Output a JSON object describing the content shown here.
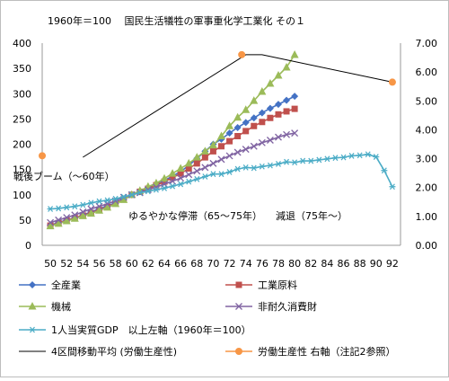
{
  "chart_data": {
    "type": "line",
    "title": "1960年＝100　 国民生活犠牲の軍事重化学工業化 その１",
    "x": [
      50,
      51,
      52,
      53,
      54,
      55,
      56,
      57,
      58,
      59,
      60,
      61,
      62,
      63,
      64,
      65,
      66,
      67,
      68,
      69,
      70,
      71,
      72,
      73,
      74,
      75,
      76,
      77,
      78,
      79,
      80,
      81,
      82,
      83,
      84,
      85,
      86,
      87,
      88,
      89,
      90,
      91,
      92
    ],
    "x_ticks": [
      "50",
      "52",
      "54",
      "56",
      "58",
      "60",
      "62",
      "64",
      "66",
      "68",
      "70",
      "72",
      "74",
      "76",
      "78",
      "80",
      "82",
      "84",
      "86",
      "88",
      "90",
      "92"
    ],
    "xlim": [
      49,
      93
    ],
    "y_left": {
      "ylim": [
        0,
        400
      ],
      "ticks": [
        "0",
        "50",
        "100",
        "150",
        "200",
        "250",
        "300",
        "350",
        "400"
      ]
    },
    "y_right": {
      "ylim": [
        0,
        7
      ],
      "ticks": [
        "0.00",
        "1.00",
        "2.00",
        "3.00",
        "4.00",
        "5.00",
        "6.00",
        "7.00"
      ]
    },
    "grid": false,
    "series": [
      {
        "name": "全産業",
        "axis": "left",
        "marker": "diamond",
        "color": "#4472c4",
        "x": [
          50,
          51,
          52,
          53,
          54,
          55,
          56,
          57,
          58,
          59,
          60,
          61,
          62,
          63,
          64,
          65,
          66,
          67,
          68,
          69,
          70,
          71,
          72,
          73,
          74,
          75,
          76,
          77,
          78,
          79,
          80
        ],
        "values": [
          40,
          45,
          50,
          54,
          60,
          66,
          72,
          78,
          84,
          92,
          100,
          106,
          114,
          120,
          128,
          137,
          146,
          158,
          172,
          186,
          200,
          210,
          222,
          233,
          243,
          252,
          262,
          271,
          279,
          287,
          295
        ]
      },
      {
        "name": "工業原料",
        "axis": "left",
        "marker": "square",
        "color": "#c0504d",
        "x": [
          50,
          51,
          52,
          53,
          54,
          55,
          56,
          57,
          58,
          59,
          60,
          61,
          62,
          63,
          64,
          65,
          66,
          67,
          68,
          69,
          70,
          71,
          72,
          73,
          74,
          75,
          76,
          77,
          78,
          79,
          80
        ],
        "values": [
          39,
          44,
          49,
          54,
          59,
          64,
          70,
          76,
          83,
          91,
          100,
          106,
          112,
          119,
          126,
          134,
          142,
          152,
          162,
          174,
          186,
          196,
          206,
          216,
          226,
          236,
          244,
          252,
          259,
          265,
          270
        ]
      },
      {
        "name": "機械",
        "axis": "left",
        "marker": "triangle",
        "color": "#9bbb59",
        "x": [
          50,
          51,
          52,
          53,
          54,
          55,
          56,
          57,
          58,
          59,
          60,
          61,
          62,
          63,
          64,
          65,
          66,
          67,
          68,
          69,
          70,
          71,
          72,
          73,
          74,
          75,
          76,
          77,
          78,
          79,
          80
        ],
        "values": [
          38,
          43,
          48,
          53,
          58,
          63,
          69,
          75,
          82,
          90,
          100,
          108,
          116,
          123,
          132,
          142,
          152,
          162,
          174,
          186,
          198,
          216,
          236,
          253,
          268,
          286,
          304,
          320,
          336,
          352,
          377
        ]
      },
      {
        "name": "非耐久消費財",
        "axis": "left",
        "marker": "x",
        "color": "#8064a2",
        "x": [
          50,
          51,
          52,
          53,
          54,
          55,
          56,
          57,
          58,
          59,
          60,
          61,
          62,
          63,
          64,
          65,
          66,
          67,
          68,
          69,
          70,
          71,
          72,
          73,
          74,
          75,
          76,
          77,
          78,
          79,
          80
        ],
        "values": [
          45,
          50,
          55,
          60,
          66,
          72,
          77,
          82,
          88,
          95,
          100,
          104,
          110,
          115,
          121,
          127,
          133,
          140,
          147,
          154,
          162,
          170,
          177,
          184,
          190,
          196,
          203,
          208,
          214,
          219,
          222
        ]
      },
      {
        "name": "1人当実質GDP　以上左軸（1960年＝100）",
        "axis": "left",
        "marker": "asterisk",
        "color": "#4bacc6",
        "x": [
          50,
          51,
          52,
          53,
          54,
          55,
          56,
          57,
          58,
          59,
          60,
          61,
          62,
          63,
          64,
          65,
          66,
          67,
          68,
          69,
          70,
          71,
          72,
          73,
          74,
          75,
          76,
          77,
          78,
          79,
          80,
          81,
          82,
          83,
          84,
          85,
          86,
          87,
          88,
          89,
          90,
          91,
          92
        ],
        "values": [
          72,
          73,
          75,
          77,
          80,
          84,
          87,
          89,
          92,
          96,
          100,
          104,
          107,
          110,
          113,
          117,
          121,
          126,
          131,
          136,
          141,
          141,
          145,
          151,
          154,
          153,
          156,
          158,
          161,
          165,
          164,
          167,
          167,
          169,
          171,
          173,
          174,
          177,
          178,
          180,
          175,
          148,
          116
        ]
      },
      {
        "name": "4区間移動平均 (労働生産性)",
        "axis": "right",
        "marker": "none",
        "color": "#000000",
        "x": [
          54,
          74,
          76,
          92
        ],
        "values": [
          3.05,
          6.6,
          6.6,
          5.65
        ]
      },
      {
        "name": "労働生産性 右軸（注記2参照）",
        "axis": "right",
        "marker": "circle",
        "color": "#f79646",
        "line": false,
        "x": [
          49,
          73.5,
          92
        ],
        "values": [
          3.1,
          6.6,
          5.65
        ]
      }
    ],
    "annotations": [
      "戦後ブーム（〜60年）",
      "ゆるやかな停滞（65〜75年）",
      "減退（75年〜）"
    ],
    "legend_position": "bottom"
  }
}
